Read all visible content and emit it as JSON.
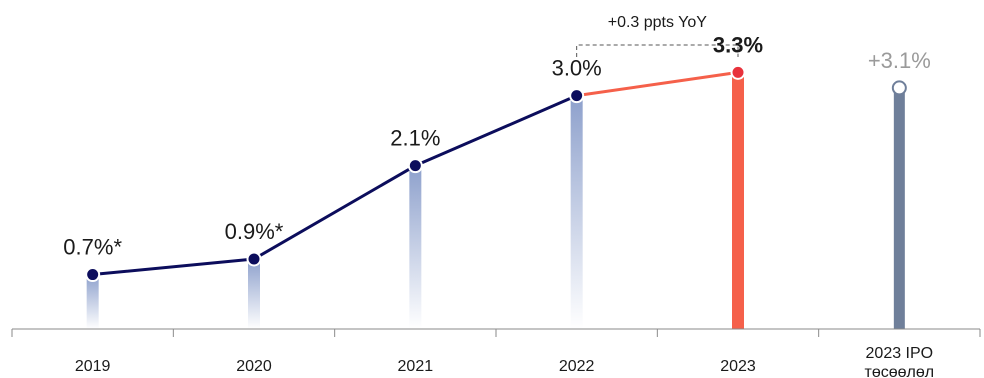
{
  "chart_data": {
    "type": "line",
    "categories": [
      "2019",
      "2020",
      "2021",
      "2022",
      "2023",
      "2023 IPO"
    ],
    "category_sublabels": [
      "",
      "",
      "",
      "",
      "",
      "төсөөлөл"
    ],
    "values": [
      0.7,
      0.9,
      2.1,
      3.0,
      3.3,
      3.1
    ],
    "data_labels": [
      "0.7%*",
      "0.9%*",
      "2.1%",
      "3.0%",
      "3.3%",
      "+3.1%"
    ],
    "highlight_index": 4,
    "projection_index": 5,
    "annotation": "+0.3 ppts YoY",
    "ylim": [
      0,
      3.6
    ],
    "grid": false,
    "colors": {
      "line": "#0c0d5c",
      "highlight": "#f5604a",
      "highlight_dot": "#e8323c",
      "projection": "#6f7f9a",
      "stem": "#8da0cc",
      "axis": "#8a8a8a",
      "projection_label": "#9a9a9a"
    }
  }
}
